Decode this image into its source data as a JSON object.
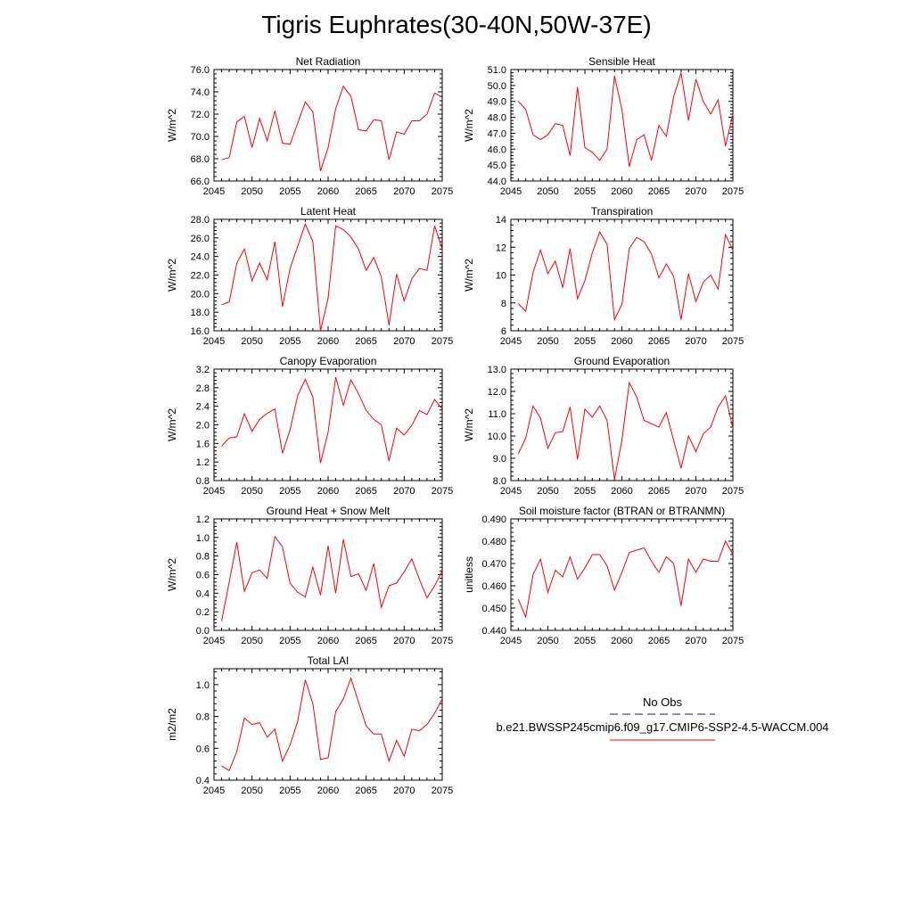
{
  "page": {
    "title": "Tigris Euphrates(30-40N,50W-37E)"
  },
  "legend": {
    "entries": [
      {
        "label": "No Obs",
        "color": "#1a1a8a",
        "dashed": true
      },
      {
        "label": "b.e21.BWSSP245cmip6.f09_g17.CMIP6-SSP2-4.5-WACCM.004",
        "color": "#ff0000",
        "dashed": false
      }
    ]
  },
  "chart_data": [
    {
      "type": "line",
      "title": "Net Radiation",
      "ylabel": "W/m^2",
      "xlim": [
        2045,
        2075
      ],
      "ylim": [
        66.0,
        76.0
      ],
      "xticks": [
        "2045",
        "2050",
        "2055",
        "2060",
        "2065",
        "2070",
        "2075"
      ],
      "yticks": [
        "66.0",
        "68.0",
        "70.0",
        "72.0",
        "74.0",
        "76.0"
      ],
      "series": [
        {
          "color": "#ff0000",
          "x": [
            2046,
            2047,
            2048,
            2049,
            2050,
            2051,
            2052,
            2053,
            2054,
            2055,
            2056,
            2057,
            2058,
            2059,
            2060,
            2061,
            2062,
            2063,
            2064,
            2065,
            2066,
            2067,
            2068,
            2069,
            2070,
            2071,
            2072,
            2073,
            2074,
            2075
          ],
          "values": [
            67.9,
            68.1,
            71.3,
            71.8,
            69.0,
            71.6,
            69.6,
            72.3,
            69.4,
            69.3,
            71.2,
            73.1,
            72.2,
            66.9,
            69.0,
            72.5,
            74.5,
            73.6,
            70.6,
            70.5,
            71.5,
            71.4,
            67.9,
            70.4,
            70.2,
            71.4,
            71.4,
            72.0,
            73.9,
            73.5
          ]
        }
      ]
    },
    {
      "type": "line",
      "title": "Sensible Heat",
      "ylabel": "W/m^2",
      "xlim": [
        2045,
        2075
      ],
      "ylim": [
        44.0,
        51.0
      ],
      "xticks": [
        "2045",
        "2050",
        "2055",
        "2060",
        "2065",
        "2070",
        "2075"
      ],
      "yticks": [
        "44.0",
        "45.0",
        "46.0",
        "47.0",
        "48.0",
        "49.0",
        "50.0",
        "51.0"
      ],
      "series": [
        {
          "color": "#ff0000",
          "x": [
            2046,
            2047,
            2048,
            2049,
            2050,
            2051,
            2052,
            2053,
            2054,
            2055,
            2056,
            2057,
            2058,
            2059,
            2060,
            2061,
            2062,
            2063,
            2064,
            2065,
            2066,
            2067,
            2068,
            2069,
            2070,
            2071,
            2072,
            2073,
            2074,
            2075
          ],
          "values": [
            49.0,
            48.5,
            46.9,
            46.6,
            46.9,
            47.6,
            47.5,
            45.6,
            49.9,
            46.1,
            45.8,
            45.3,
            46.0,
            50.6,
            48.5,
            44.9,
            46.6,
            46.9,
            45.3,
            47.5,
            46.8,
            49.3,
            50.8,
            47.8,
            50.4,
            49.0,
            48.2,
            49.1,
            46.2,
            48.2
          ]
        }
      ]
    },
    {
      "type": "line",
      "title": "Latent Heat",
      "ylabel": "W/m^2",
      "xlim": [
        2045,
        2075
      ],
      "ylim": [
        16.0,
        28.0
      ],
      "xticks": [
        "2045",
        "2050",
        "2055",
        "2060",
        "2065",
        "2070",
        "2075"
      ],
      "yticks": [
        "16.0",
        "18.0",
        "20.0",
        "22.0",
        "24.0",
        "26.0",
        "28.0"
      ],
      "series": [
        {
          "color": "#ff0000",
          "x": [
            2046,
            2047,
            2048,
            2049,
            2050,
            2051,
            2052,
            2053,
            2054,
            2055,
            2056,
            2057,
            2058,
            2059,
            2060,
            2061,
            2062,
            2063,
            2064,
            2065,
            2066,
            2067,
            2068,
            2069,
            2070,
            2071,
            2072,
            2073,
            2074,
            2075
          ],
          "values": [
            18.8,
            19.1,
            23.3,
            24.8,
            21.4,
            23.3,
            21.5,
            25.6,
            18.6,
            22.7,
            25.1,
            27.5,
            25.6,
            16.0,
            19.5,
            27.3,
            26.9,
            26.1,
            24.8,
            22.5,
            23.9,
            21.8,
            16.6,
            22.1,
            19.2,
            21.6,
            22.7,
            22.5,
            27.3,
            24.8
          ]
        }
      ]
    },
    {
      "type": "line",
      "title": "Transpiration",
      "ylabel": "W/m^2",
      "xlim": [
        2045,
        2075
      ],
      "ylim": [
        6,
        14
      ],
      "xticks": [
        "2045",
        "2050",
        "2055",
        "2060",
        "2065",
        "2070",
        "2075"
      ],
      "yticks": [
        "6",
        "8",
        "10",
        "12",
        "14"
      ],
      "series": [
        {
          "color": "#ff0000",
          "x": [
            2046,
            2047,
            2048,
            2049,
            2050,
            2051,
            2052,
            2053,
            2054,
            2055,
            2056,
            2057,
            2058,
            2059,
            2060,
            2061,
            2062,
            2063,
            2064,
            2065,
            2066,
            2067,
            2068,
            2069,
            2070,
            2071,
            2072,
            2073,
            2074,
            2075
          ],
          "values": [
            7.95,
            7.4,
            10.2,
            11.8,
            10.1,
            11.0,
            9.1,
            11.9,
            8.3,
            9.6,
            11.6,
            13.1,
            12.2,
            6.8,
            7.9,
            11.9,
            12.7,
            12.4,
            11.5,
            9.8,
            10.8,
            9.9,
            6.8,
            10.1,
            8.1,
            9.5,
            10.0,
            9.0,
            12.9,
            11.8
          ]
        }
      ]
    },
    {
      "type": "line",
      "title": "Canopy Evaporation",
      "ylabel": "W/m^2",
      "xlim": [
        2045,
        2075
      ],
      "ylim": [
        0.8,
        3.2
      ],
      "xticks": [
        "2045",
        "2050",
        "2055",
        "2060",
        "2065",
        "2070",
        "2075"
      ],
      "yticks": [
        "0.8",
        "1.2",
        "1.6",
        "2.0",
        "2.4",
        "2.8",
        "3.2"
      ],
      "series": [
        {
          "color": "#ff0000",
          "x": [
            2046,
            2047,
            2048,
            2049,
            2050,
            2051,
            2052,
            2053,
            2054,
            2055,
            2056,
            2057,
            2058,
            2059,
            2060,
            2061,
            2062,
            2063,
            2064,
            2065,
            2066,
            2067,
            2068,
            2069,
            2070,
            2071,
            2072,
            2073,
            2074,
            2075
          ],
          "values": [
            1.54,
            1.72,
            1.74,
            2.24,
            1.86,
            2.12,
            2.25,
            2.34,
            1.39,
            1.89,
            2.63,
            2.98,
            2.6,
            1.18,
            1.84,
            3.03,
            2.42,
            2.97,
            2.67,
            2.31,
            2.12,
            2.0,
            1.22,
            1.93,
            1.78,
            1.99,
            2.31,
            2.22,
            2.55,
            2.34
          ]
        }
      ]
    },
    {
      "type": "line",
      "title": "Ground Evaporation",
      "ylabel": "W/m^2",
      "xlim": [
        2045,
        2075
      ],
      "ylim": [
        8.0,
        13.0
      ],
      "xticks": [
        "2045",
        "2050",
        "2055",
        "2060",
        "2065",
        "2070",
        "2075"
      ],
      "yticks": [
        "8.0",
        "9.0",
        "10.0",
        "11.0",
        "12.0",
        "13.0"
      ],
      "series": [
        {
          "color": "#ff0000",
          "x": [
            2046,
            2047,
            2048,
            2049,
            2050,
            2051,
            2052,
            2053,
            2054,
            2055,
            2056,
            2057,
            2058,
            2059,
            2060,
            2061,
            2062,
            2063,
            2064,
            2065,
            2066,
            2067,
            2068,
            2069,
            2070,
            2071,
            2072,
            2073,
            2074,
            2075
          ],
          "values": [
            9.2,
            9.9,
            11.35,
            10.8,
            9.45,
            10.15,
            10.2,
            11.3,
            8.95,
            11.2,
            10.85,
            11.35,
            10.7,
            8.05,
            9.8,
            12.4,
            11.75,
            10.7,
            10.55,
            10.4,
            11.05,
            9.8,
            8.55,
            10.0,
            9.3,
            10.1,
            10.4,
            11.3,
            11.8,
            10.35
          ]
        }
      ]
    },
    {
      "type": "line",
      "title": "Ground Heat + Snow Melt",
      "ylabel": "W/m^2",
      "xlim": [
        2045,
        2075
      ],
      "ylim": [
        0.0,
        1.2
      ],
      "xticks": [
        "2045",
        "2050",
        "2055",
        "2060",
        "2065",
        "2070",
        "2075"
      ],
      "yticks": [
        "0.0",
        "0.2",
        "0.4",
        "0.6",
        "0.8",
        "1.0",
        "1.2"
      ],
      "series": [
        {
          "color": "#ff0000",
          "x": [
            2046,
            2047,
            2048,
            2049,
            2050,
            2051,
            2052,
            2053,
            2054,
            2055,
            2056,
            2057,
            2058,
            2059,
            2060,
            2061,
            2062,
            2063,
            2064,
            2065,
            2066,
            2067,
            2068,
            2069,
            2070,
            2071,
            2072,
            2073,
            2074,
            2075
          ],
          "values": [
            0.1,
            0.52,
            0.95,
            0.42,
            0.62,
            0.65,
            0.56,
            1.01,
            0.9,
            0.51,
            0.41,
            0.36,
            0.68,
            0.38,
            0.91,
            0.4,
            0.98,
            0.58,
            0.61,
            0.43,
            0.72,
            0.25,
            0.48,
            0.51,
            0.63,
            0.77,
            0.55,
            0.35,
            0.48,
            0.64
          ]
        }
      ]
    },
    {
      "type": "line",
      "title": "Soil moisture factor (BTRAN or BTRANMN)",
      "ylabel": "unitless",
      "xlim": [
        2045,
        2075
      ],
      "ylim": [
        0.44,
        0.49
      ],
      "xticks": [
        "2045",
        "2050",
        "2055",
        "2060",
        "2065",
        "2070",
        "2075"
      ],
      "yticks": [
        "0.440",
        "0.450",
        "0.460",
        "0.470",
        "0.480",
        "0.490"
      ],
      "series": [
        {
          "color": "#ff0000",
          "x": [
            2046,
            2047,
            2048,
            2049,
            2050,
            2051,
            2052,
            2053,
            2054,
            2055,
            2056,
            2057,
            2058,
            2059,
            2060,
            2061,
            2062,
            2063,
            2064,
            2065,
            2066,
            2067,
            2068,
            2069,
            2070,
            2071,
            2072,
            2073,
            2074,
            2075
          ],
          "values": [
            0.454,
            0.446,
            0.465,
            0.472,
            0.457,
            0.467,
            0.464,
            0.473,
            0.463,
            0.468,
            0.474,
            0.474,
            0.469,
            0.458,
            0.466,
            0.475,
            0.476,
            0.477,
            0.471,
            0.466,
            0.473,
            0.47,
            0.451,
            0.472,
            0.466,
            0.472,
            0.471,
            0.471,
            0.48,
            0.474
          ]
        }
      ]
    },
    {
      "type": "line",
      "title": "Total LAI",
      "ylabel": "m2/m2",
      "xlim": [
        2045,
        2075
      ],
      "ylim": [
        0.4,
        1.1
      ],
      "xticks": [
        "2045",
        "2050",
        "2055",
        "2060",
        "2065",
        "2070",
        "2075"
      ],
      "yticks": [
        "0.4",
        "0.6",
        "0.8",
        "1.0"
      ],
      "series": [
        {
          "color": "#ff0000",
          "x": [
            2046,
            2047,
            2048,
            2049,
            2050,
            2051,
            2052,
            2053,
            2054,
            2055,
            2056,
            2057,
            2058,
            2059,
            2060,
            2061,
            2062,
            2063,
            2064,
            2065,
            2066,
            2067,
            2068,
            2069,
            2070,
            2071,
            2072,
            2073,
            2074,
            2075
          ],
          "values": [
            0.49,
            0.46,
            0.58,
            0.79,
            0.75,
            0.76,
            0.67,
            0.72,
            0.52,
            0.62,
            0.77,
            1.03,
            0.88,
            0.53,
            0.54,
            0.83,
            0.91,
            1.04,
            0.89,
            0.74,
            0.69,
            0.69,
            0.52,
            0.65,
            0.55,
            0.72,
            0.71,
            0.75,
            0.82,
            0.91
          ]
        }
      ]
    }
  ]
}
